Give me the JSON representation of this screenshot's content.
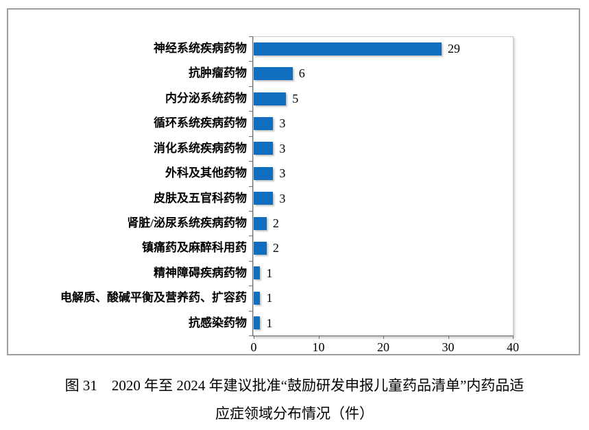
{
  "chart_data": {
    "type": "bar",
    "orientation": "horizontal",
    "categories": [
      "神经系统疾病药物",
      "抗肿瘤药物",
      "内分泌系统药物",
      "循环系统疾病药物",
      "消化系统疾病药物",
      "外科及其他药物",
      "皮肤及五官科药物",
      "肾脏/泌尿系统疾病药物",
      "镇痛药及麻醉科用药",
      "精神障碍疾病药物",
      "电解质、酸碱平衡及营养药、扩容药",
      "抗感染药物"
    ],
    "values": [
      29,
      6,
      5,
      3,
      3,
      3,
      3,
      2,
      2,
      1,
      1,
      1
    ],
    "xlim": [
      0,
      40
    ],
    "x_ticks": [
      0,
      10,
      20,
      30,
      40
    ],
    "bar_color": "#0f6fbe",
    "grid": false,
    "legend": false,
    "data_labels": true
  },
  "caption": {
    "line1": "图 31　2020 年至 2024 年建议批准“鼓励研发申报儿童药品清单”内药品适",
    "line2": "应症领域分布情况（件）"
  }
}
